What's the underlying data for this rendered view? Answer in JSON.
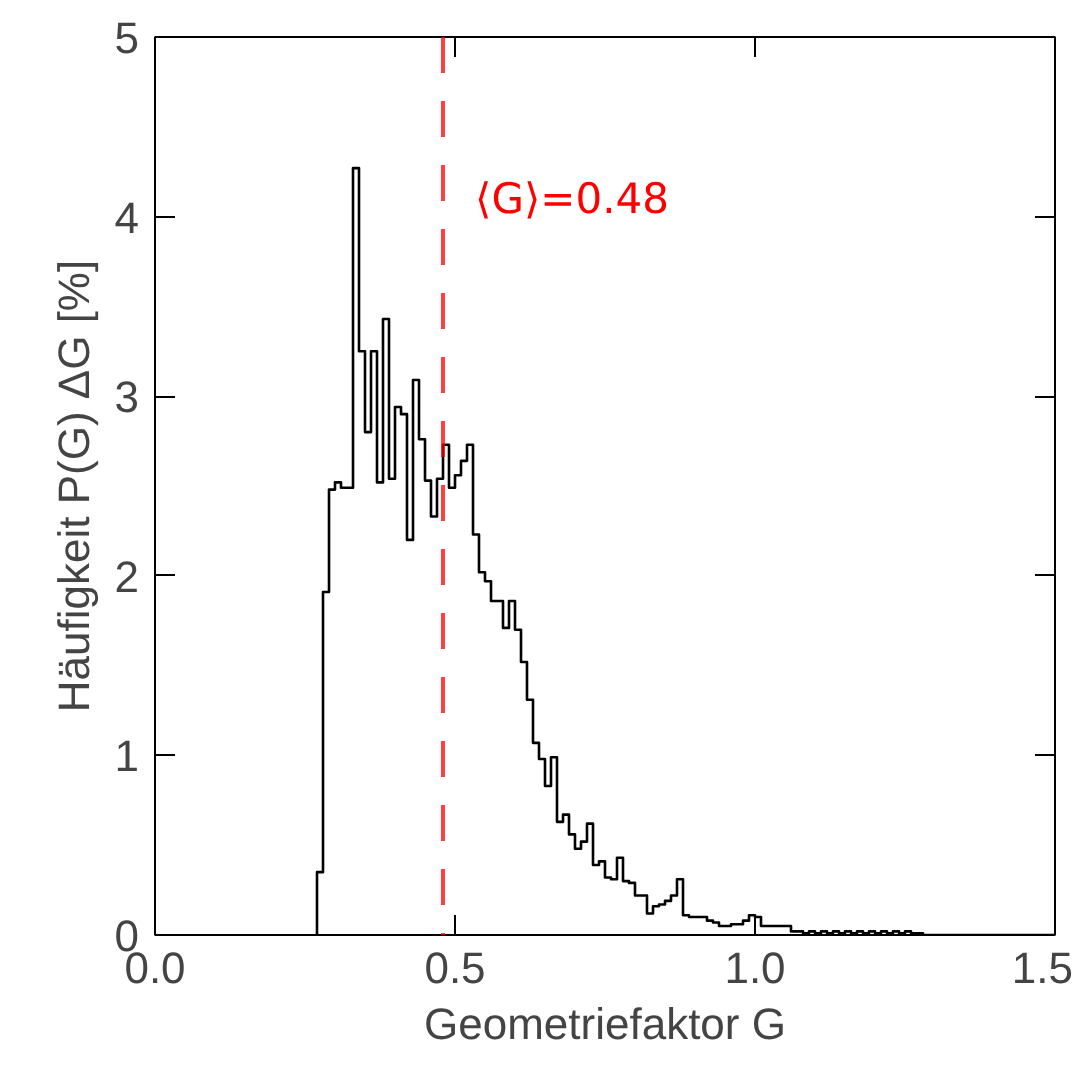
{
  "chart_data": {
    "type": "histogram",
    "xlabel": "Geometriefaktor G",
    "ylabel": "Häufigkeit P(G) ΔG [%]",
    "bins": [
      0.27,
      0.28,
      0.29,
      0.3,
      0.31,
      0.32,
      0.33,
      0.34,
      0.35,
      0.36,
      0.37,
      0.38,
      0.39,
      0.4,
      0.41,
      0.42,
      0.43,
      0.44,
      0.45,
      0.46,
      0.47,
      0.48,
      0.49,
      0.5,
      0.51,
      0.52,
      0.53,
      0.54,
      0.55,
      0.56,
      0.57,
      0.58,
      0.59,
      0.6,
      0.61,
      0.62,
      0.63,
      0.64,
      0.65,
      0.66,
      0.67,
      0.68,
      0.69,
      0.7,
      0.71,
      0.72,
      0.73,
      0.74,
      0.75,
      0.76,
      0.77,
      0.78,
      0.79,
      0.8,
      0.81,
      0.82,
      0.83,
      0.84,
      0.85,
      0.86,
      0.87,
      0.88,
      0.89,
      0.9,
      0.91,
      0.92,
      0.93,
      0.94,
      0.95,
      0.96,
      0.97,
      0.98,
      0.99,
      1.0,
      1.01,
      1.02,
      1.03,
      1.04,
      1.05,
      1.06,
      1.07,
      1.08,
      1.09,
      1.1,
      1.11,
      1.12,
      1.13,
      1.14,
      1.15,
      1.16,
      1.17,
      1.18,
      1.19,
      1.2,
      1.21,
      1.22,
      1.23,
      1.24,
      1.25,
      1.26,
      1.27,
      1.28,
      1.29,
      1.3,
      1.31,
      1.32,
      1.33,
      1.34,
      1.35,
      1.36,
      1.37,
      1.38,
      1.39,
      1.4,
      1.41,
      1.42,
      1.43,
      1.44,
      1.45,
      1.46,
      1.47,
      1.48,
      1.49,
      1.5
    ],
    "values": [
      0.35,
      1.91,
      2.48,
      2.52,
      2.49,
      2.49,
      4.27,
      3.25,
      2.8,
      3.25,
      2.52,
      3.43,
      2.54,
      2.94,
      2.9,
      2.2,
      3.09,
      2.76,
      2.53,
      2.33,
      2.54,
      2.73,
      2.49,
      2.56,
      2.64,
      2.73,
      2.23,
      2.02,
      1.97,
      1.86,
      1.86,
      1.71,
      1.86,
      1.7,
      1.52,
      1.31,
      1.07,
      0.98,
      0.83,
      0.99,
      0.63,
      0.67,
      0.56,
      0.48,
      0.52,
      0.62,
      0.39,
      0.41,
      0.32,
      0.31,
      0.43,
      0.3,
      0.29,
      0.22,
      0.22,
      0.12,
      0.16,
      0.17,
      0.19,
      0.22,
      0.31,
      0.11,
      0.1,
      0.1,
      0.1,
      0.08,
      0.07,
      0.05,
      0.05,
      0.06,
      0.06,
      0.08,
      0.11,
      0.1,
      0.05,
      0.05,
      0.05,
      0.05,
      0.05,
      0.02,
      0.02,
      0.01,
      0.02,
      0.01,
      0.02,
      0.01,
      0.02,
      0.01,
      0.02,
      0.01,
      0.02,
      0.01,
      0.02,
      0.01,
      0.02,
      0.01,
      0.02,
      0.01,
      0.02,
      0.01,
      0.01,
      0,
      0,
      0,
      0,
      0,
      0,
      0,
      0,
      0,
      0,
      0,
      0,
      0,
      0,
      0,
      0,
      0,
      0,
      0,
      0,
      0,
      0
    ],
    "color": "#000000",
    "xlim": [
      0,
      1.5
    ],
    "xticks": [
      {
        "value": 0.0,
        "label": "0.0"
      },
      0.5,
      {
        "value": 1.0,
        "label": "1.0"
      },
      1.5
    ],
    "ylim": [
      0,
      5
    ],
    "yticks": [
      0,
      1,
      2,
      3,
      4,
      5
    ],
    "ref_lines": [
      {
        "axis": "x",
        "value": 0.48,
        "label": "⟨G⟩=0.48",
        "color": "#ff0000",
        "line_style": "dashed"
      }
    ]
  }
}
